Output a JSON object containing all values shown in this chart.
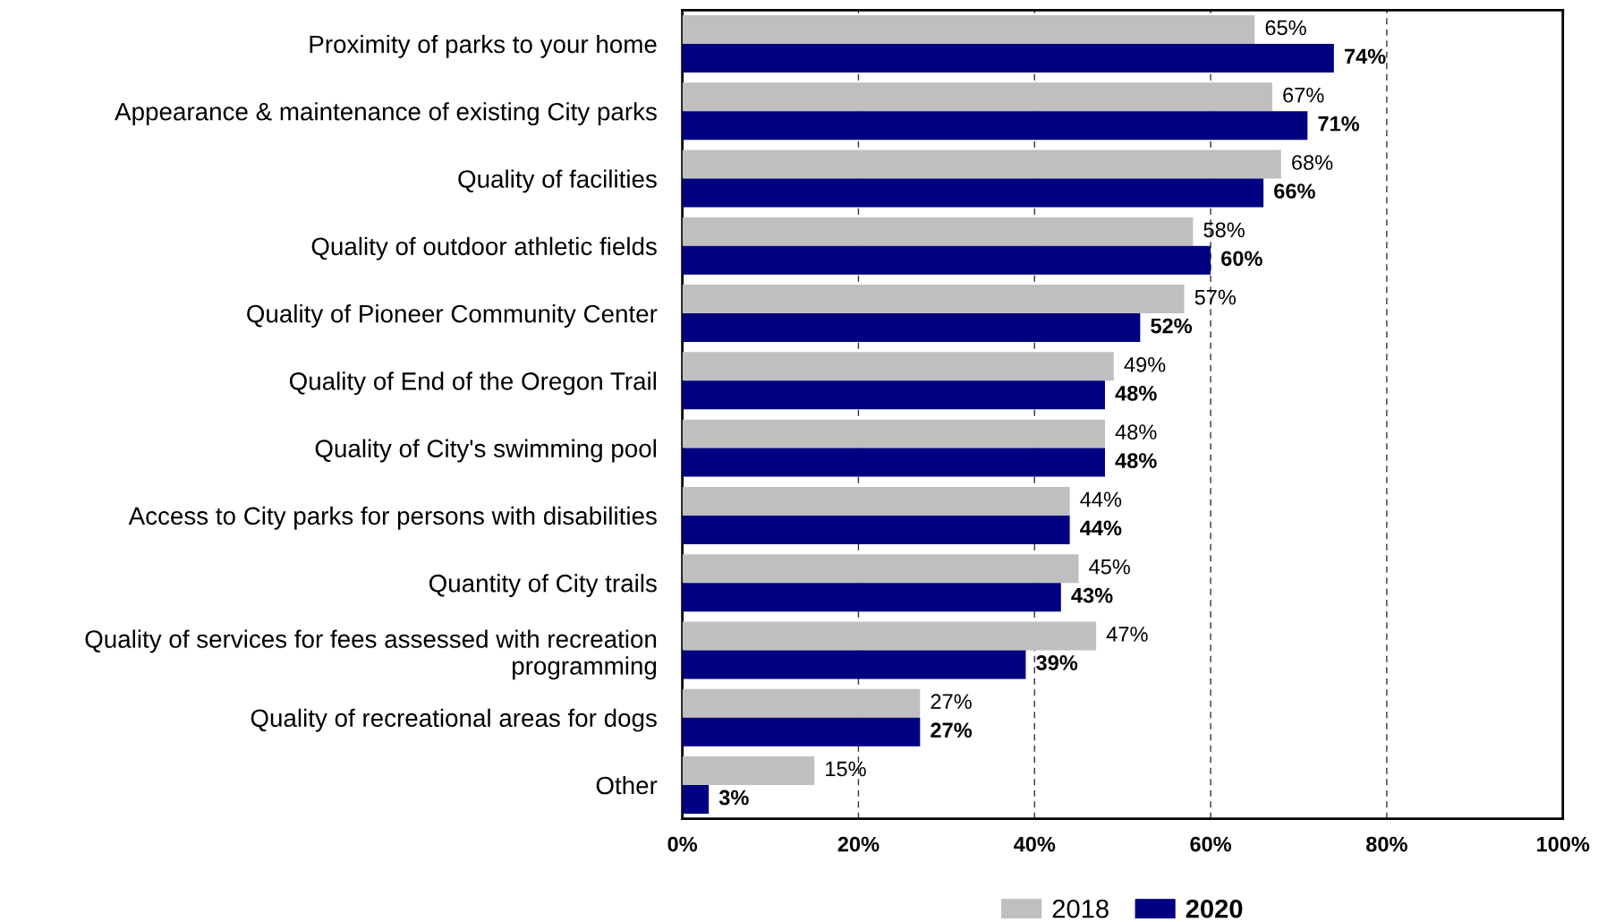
{
  "chart_data": {
    "type": "bar",
    "orientation": "horizontal",
    "categories": [
      "Proximity of parks to your home",
      "Appearance & maintenance of existing City parks",
      "Quality of facilities",
      "Quality of outdoor athletic fields",
      "Quality of Pioneer Community Center",
      "Quality of End of the Oregon Trail",
      "Quality of City's swimming pool",
      "Access to City parks for persons with disabilities",
      "Quantity of City trails",
      "Quality of services for fees assessed with recreation\nprogramming",
      "Quality of recreational areas for dogs",
      "Other"
    ],
    "series": [
      {
        "name": "2018",
        "color": "#bfbfbf",
        "values": [
          65,
          67,
          68,
          58,
          57,
          49,
          48,
          44,
          45,
          47,
          27,
          15
        ],
        "value_labels": [
          "65%",
          "67%",
          "68%",
          "58%",
          "57%",
          "49%",
          "48%",
          "44%",
          "45%",
          "47%",
          "27%",
          "15%"
        ]
      },
      {
        "name": "2020",
        "color": "#000080",
        "values": [
          74,
          71,
          66,
          60,
          52,
          48,
          48,
          44,
          43,
          39,
          27,
          3
        ],
        "value_labels": [
          "74%",
          "71%",
          "66%",
          "60%",
          "52%",
          "48%",
          "48%",
          "44%",
          "43%",
          "39%",
          "27%",
          "3%"
        ]
      }
    ],
    "xlim": [
      0,
      100
    ],
    "xticks": [
      {
        "value": 0,
        "label": "0%"
      },
      {
        "value": 20,
        "label": "20%"
      },
      {
        "value": 40,
        "label": "40%"
      },
      {
        "value": 60,
        "label": "60%"
      },
      {
        "value": 80,
        "label": "80%"
      },
      {
        "value": 100,
        "label": "100%"
      }
    ],
    "grid": "x",
    "legend": "bottom"
  }
}
